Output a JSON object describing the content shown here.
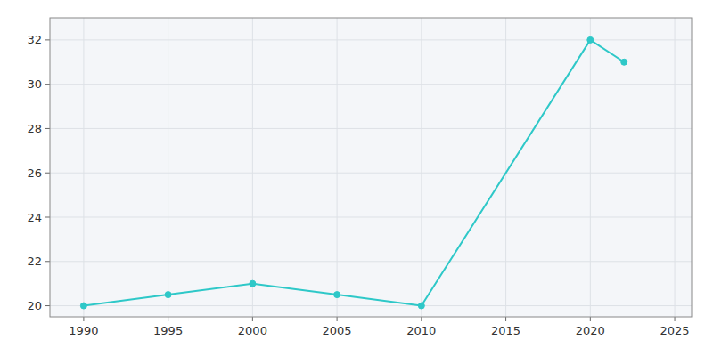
{
  "chart_data": {
    "type": "line",
    "x": [
      1990,
      1995,
      2000,
      2005,
      2010,
      2020,
      2022
    ],
    "values": [
      20,
      20.5,
      21,
      20.5,
      20,
      32,
      31
    ],
    "color": "#2ec8c8",
    "marker": "circle",
    "xlim": [
      1988,
      2026
    ],
    "ylim": [
      19.5,
      33
    ],
    "xticks": [
      1990,
      1995,
      2000,
      2005,
      2010,
      2015,
      2020,
      2025
    ],
    "yticks": [
      20,
      22,
      24,
      26,
      28,
      30,
      32
    ],
    "grid": true
  }
}
